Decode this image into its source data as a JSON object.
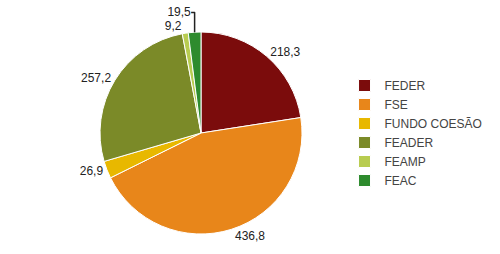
{
  "chart_data": {
    "type": "pie",
    "categories": [
      "FEDER",
      "FSE",
      "FUNDO COESÃO",
      "FEADER",
      "FEAMP",
      "FEAC"
    ],
    "values": [
      218.3,
      436.8,
      26.9,
      257.2,
      9.2,
      19.5
    ],
    "value_labels": [
      "218,3",
      "436,8",
      "26,9",
      "257,2",
      "9,2",
      "19,5"
    ],
    "colors": [
      "#7B0C0C",
      "#E8861A",
      "#E8B800",
      "#7B8A28",
      "#B8CC50",
      "#2E8B2E"
    ],
    "data_labels": true,
    "legend": "right"
  }
}
